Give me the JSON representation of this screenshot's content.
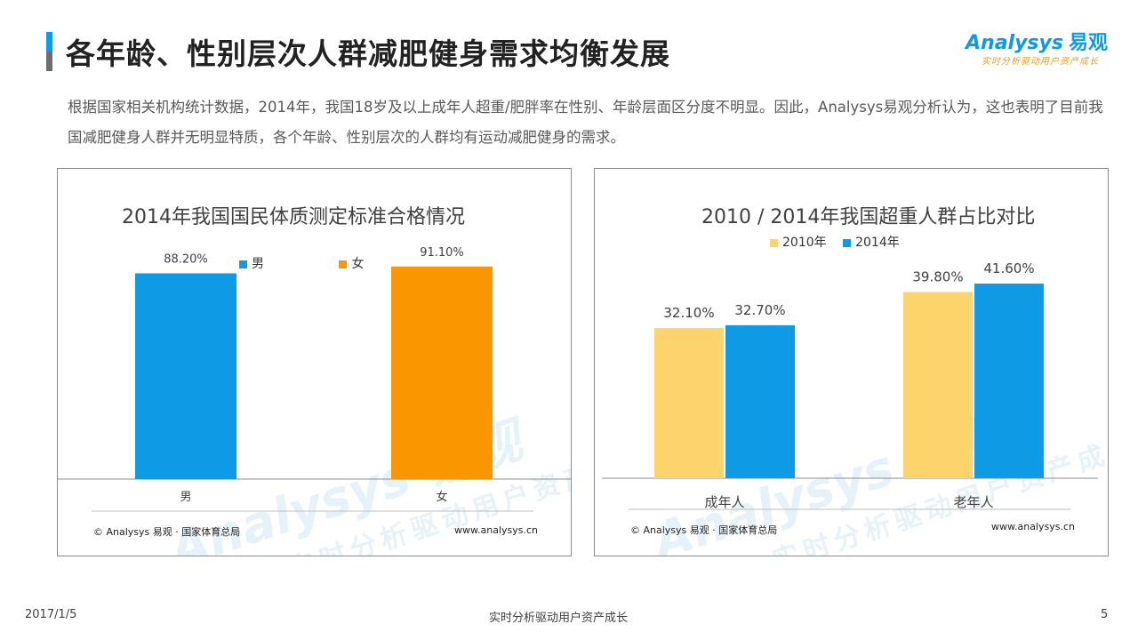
{
  "page": {
    "title": "各年龄、性别层次人群减肥健身需求均衡发展",
    "intro": "根据国家相关机构统计数据，2014年，我国18岁及以上成年人超重/肥胖率在性别、年龄层面区分度不明显。因此，Analysys易观分析认为，这也表明了目前我国减肥健身人群并无明显特质，各个年龄、性别层次的人群均有运动减肥健身的需求。"
  },
  "logo": {
    "brand": "Analysys",
    "brand_cn": "易观",
    "tagline": "实时分析驱动用户资产成长"
  },
  "watermark": {
    "brand": "Analysys 易观",
    "tagline": "实时分析驱动用户资产成长"
  },
  "footer": {
    "date": "2017/1/5",
    "center": "实时分析驱动用户资产成长",
    "page_number": "5"
  },
  "colors": {
    "blue": "#0e9ae4",
    "orange": "#fa9600",
    "yellow": "#fdd36b",
    "title_bar_gray": "#6d6e70"
  },
  "chart_data": [
    {
      "type": "bar",
      "title": "2014年我国国民体质测定标准合格情况",
      "categories": [
        "男",
        "女"
      ],
      "series": [
        {
          "name": "男",
          "values": [
            88.2,
            null
          ],
          "labels": [
            "88.20%",
            null
          ],
          "color": "#0e9ae4"
        },
        {
          "name": "女",
          "values": [
            null,
            91.1
          ],
          "labels": [
            null,
            "91.10%"
          ],
          "color": "#fa9600"
        }
      ],
      "legend": [
        "男",
        "女"
      ],
      "ylim": [
        0,
        112
      ],
      "source": "© Analysys 易观 · 国家体育总局",
      "site": "www.analysys.cn"
    },
    {
      "type": "bar",
      "title": "2010 / 2014年我国超重人群占比对比",
      "categories": [
        "成年人",
        "老年人"
      ],
      "series": [
        {
          "name": "2010年",
          "values": [
            32.1,
            39.8
          ],
          "labels": [
            "32.10%",
            "39.80%"
          ],
          "color": "#fdd36b"
        },
        {
          "name": "2014年",
          "values": [
            32.7,
            41.6
          ],
          "labels": [
            "32.70%",
            "41.60%"
          ],
          "color": "#0e9ae4"
        }
      ],
      "legend": [
        "2010年",
        "2014年"
      ],
      "ylim": [
        0,
        57
      ],
      "source": "© Analysys 易观 · 国家体育总局",
      "site": "www.analysys.cn"
    }
  ]
}
